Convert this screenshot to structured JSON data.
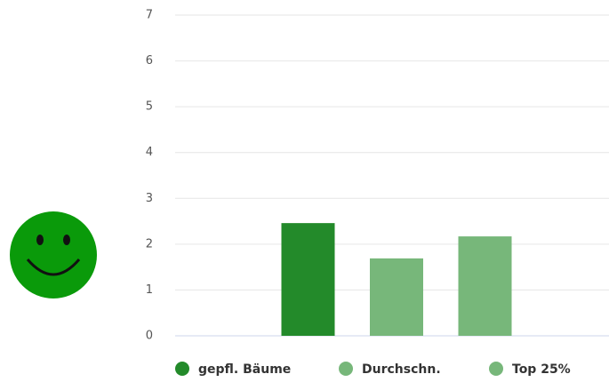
{
  "chart_data": {
    "type": "bar",
    "categories": [
      null
    ],
    "series": [
      {
        "name": "gepfl. Bäume",
        "color": "#238a2a",
        "values": [
          2.46
        ]
      },
      {
        "name": "Durchschn.",
        "color": "#77b77a",
        "values": [
          1.69
        ]
      },
      {
        "name": "Top 25%",
        "color": "#77b77a",
        "values": [
          2.17
        ]
      }
    ],
    "ylim": [
      0,
      7
    ],
    "yticks": [
      0,
      1,
      2,
      3,
      4,
      5,
      6,
      7
    ],
    "grid": true
  }
}
